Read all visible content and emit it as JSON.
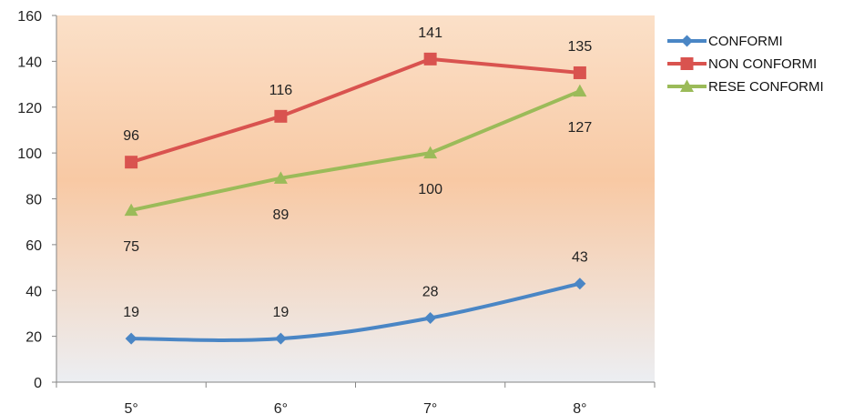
{
  "chart_data": {
    "type": "line",
    "categories": [
      "5°",
      "6°",
      "7°",
      "8°"
    ],
    "ylim": [
      0,
      160
    ],
    "yticks": [
      0,
      20,
      40,
      60,
      80,
      100,
      120,
      140,
      160
    ],
    "grid": false,
    "legend_position": "right",
    "plot_background": "vertical gradient from light orange to light gray",
    "series": [
      {
        "name": "CONFORMI",
        "values": [
          19,
          19,
          28,
          43
        ],
        "color": "#4a86c5",
        "marker": "diamond",
        "label_position": "above",
        "smooth": true
      },
      {
        "name": "NON CONFORMI",
        "values": [
          96,
          116,
          141,
          135
        ],
        "color": "#d9534f",
        "marker": "square",
        "label_position": "above",
        "smooth": false
      },
      {
        "name": "RESE CONFORMI",
        "values": [
          75,
          89,
          100,
          127
        ],
        "color": "#9bbb59",
        "marker": "triangle",
        "label_position": "below",
        "smooth": false
      }
    ]
  }
}
